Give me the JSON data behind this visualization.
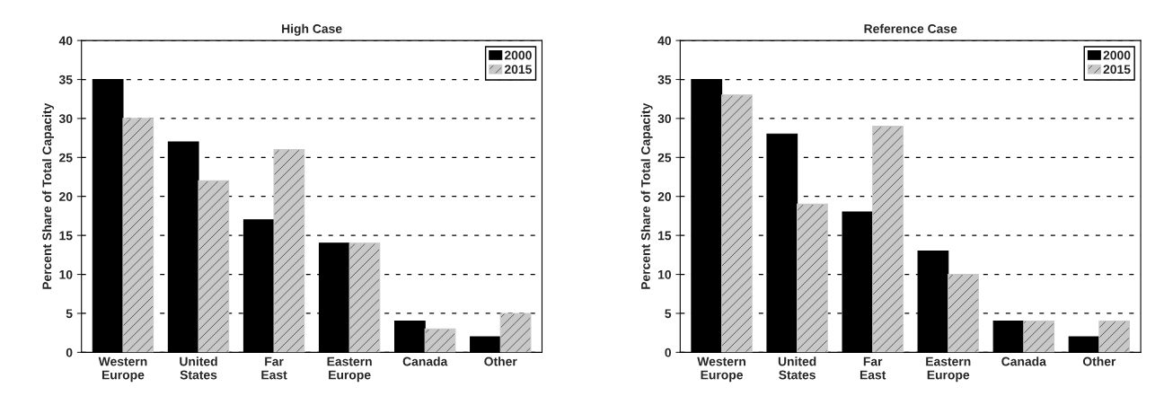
{
  "chart_data": [
    {
      "type": "bar",
      "title": "High Case",
      "ylabel": "Percent Share of Total Capacity",
      "categories": [
        "Western\nEurope",
        "United\nStates",
        "Far\nEast",
        "Eastern\nEurope",
        "Canada",
        "Other"
      ],
      "series": [
        {
          "name": "2000",
          "color": "#000000",
          "values": [
            35,
            27,
            17,
            14,
            4,
            2
          ]
        },
        {
          "name": "2015",
          "color": "#c8c8c8",
          "values": [
            30,
            22,
            26,
            14,
            3,
            5
          ]
        }
      ],
      "ylim": [
        0,
        40
      ],
      "yticks": [
        0,
        5,
        10,
        15,
        20,
        25,
        30,
        35,
        40
      ],
      "grid": "y",
      "legend": "top right"
    },
    {
      "type": "bar",
      "title": "Reference Case",
      "ylabel": "Percent Share of Total Capacity",
      "categories": [
        "Western\nEurope",
        "United\nStates",
        "Far\nEast",
        "Eastern\nEurope",
        "Canada",
        "Other"
      ],
      "series": [
        {
          "name": "2000",
          "color": "#000000",
          "values": [
            35,
            28,
            18,
            13,
            4,
            2
          ]
        },
        {
          "name": "2015",
          "color": "#c8c8c8",
          "values": [
            33,
            19,
            29,
            10,
            4,
            4
          ]
        }
      ],
      "ylim": [
        0,
        40
      ],
      "yticks": [
        0,
        5,
        10,
        15,
        20,
        25,
        30,
        35,
        40
      ],
      "grid": "y",
      "legend": "top right"
    }
  ]
}
